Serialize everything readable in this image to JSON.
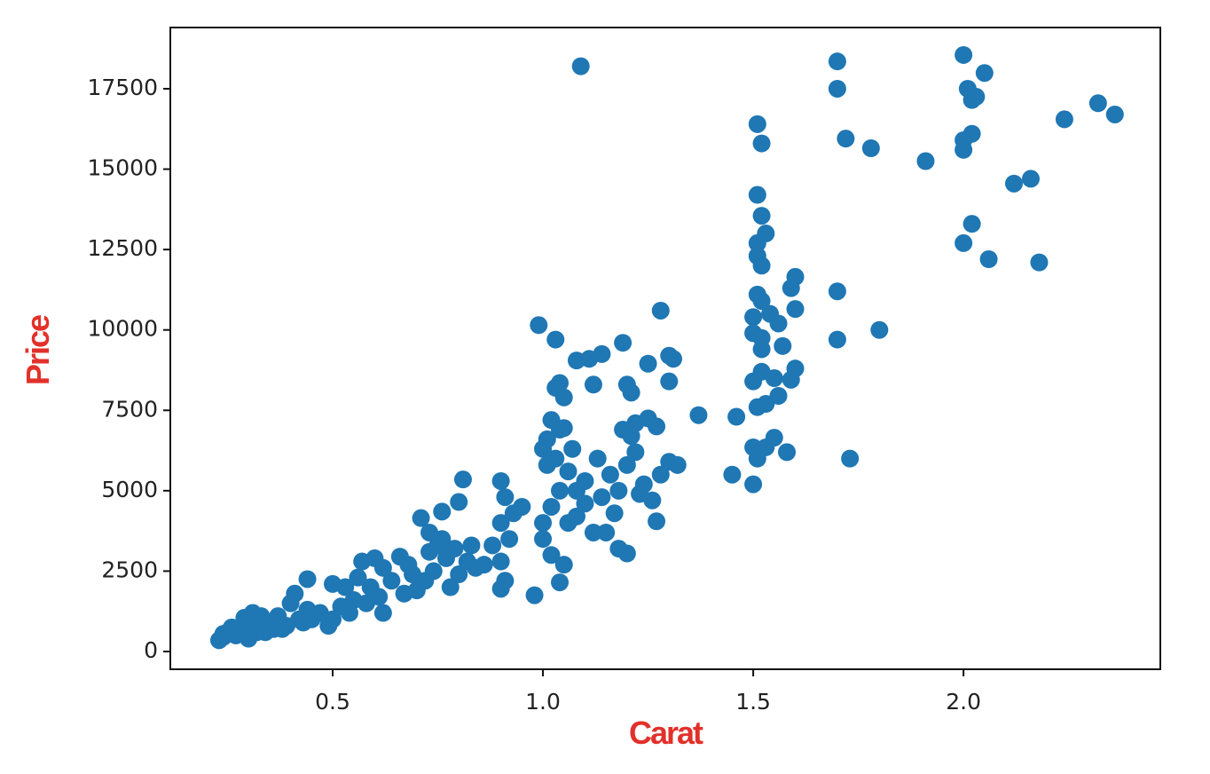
{
  "chart_data": {
    "type": "scatter",
    "xlabel": "Carat",
    "ylabel": "Price",
    "color": "#1f77b4",
    "label_color": "#e2302a",
    "xlim": [
      0.114,
      2.468
    ],
    "ylim": [
      -552,
      19404
    ],
    "xticks": [
      0.5,
      {
        "value": 1,
        "label": "1.0"
      },
      1.5,
      {
        "value": 2,
        "label": "2.0"
      }
    ],
    "yticks": [
      0,
      2500,
      5000,
      7500,
      10000,
      12500,
      15000,
      17500
    ],
    "x": [
      1.09,
      1.7,
      1.7,
      2.0,
      2.05,
      2.01,
      2.03,
      2.02,
      2.32,
      2.36,
      2.24,
      1.51,
      1.52,
      1.72,
      1.78,
      1.91,
      2.0,
      2.02,
      2.0,
      2.12,
      2.16,
      1.51,
      1.52,
      1.53,
      1.51,
      1.51,
      1.52,
      2.02,
      2.0,
      2.06,
      2.18,
      1.7,
      1.51,
      1.52,
      1.59,
      1.6,
      1.6,
      1.5,
      1.54,
      1.56,
      1.5,
      1.52,
      1.7,
      1.8,
      1.28,
      0.99,
      1.03,
      1.08,
      1.11,
      1.14,
      1.19,
      1.25,
      1.3,
      1.31,
      1.52,
      1.57,
      1.5,
      1.52,
      1.55,
      1.59,
      1.6,
      1.3,
      1.12,
      1.03,
      1.04,
      1.05,
      1.2,
      1.21,
      1.37,
      1.46,
      1.51,
      1.53,
      1.56,
      1.25,
      1.27,
      1.02,
      1.04,
      1.05,
      1.19,
      1.22,
      1.5,
      1.51,
      1.53,
      1.55,
      1.58,
      1.73,
      1.45,
      1.5,
      1.3,
      1.32,
      1.28,
      1.26,
      1.27,
      1.2,
      1.18,
      1.17,
      1.15,
      1.12,
      1.1,
      1.08,
      1.06,
      1.04,
      1.02,
      1.0,
      1.0,
      1.01,
      1.03,
      1.07,
      1.13,
      1.16,
      1.2,
      1.22,
      1.24,
      1.23,
      0.98,
      1.04,
      1.05,
      1.02,
      0.9,
      0.91,
      0.9,
      0.92,
      0.9,
      0.91,
      0.9,
      0.95,
      0.93,
      0.88,
      0.81,
      0.8,
      0.76,
      0.71,
      0.73,
      0.75,
      0.77,
      0.74,
      0.72,
      0.7,
      0.78,
      0.8,
      0.82,
      0.84,
      0.86,
      0.83,
      0.66,
      0.67,
      0.69,
      0.62,
      0.62,
      0.6,
      0.59,
      0.57,
      0.56,
      0.55,
      0.53,
      0.52,
      0.5,
      0.5,
      0.49,
      0.47,
      0.44,
      0.41,
      0.44,
      0.42,
      0.4,
      0.39,
      0.37,
      0.36,
      0.35,
      0.33,
      0.31,
      0.32,
      0.3,
      0.3,
      0.28,
      0.27,
      0.26,
      0.25,
      0.24,
      0.23,
      0.24,
      0.29,
      0.34,
      0.38,
      0.43,
      0.45,
      0.54,
      0.58,
      0.61,
      0.64,
      0.68,
      0.73,
      0.76,
      0.79,
      1.08,
      1.1,
      1.14,
      1.18,
      1.21,
      1.06,
      1.01,
      1.0
    ],
    "values": [
      18200,
      18350,
      17500,
      18550,
      17990,
      17500,
      17250,
      17150,
      17050,
      16700,
      16550,
      16400,
      15800,
      15950,
      15650,
      15250,
      15900,
      16100,
      15600,
      14550,
      14700,
      14200,
      13550,
      13000,
      12700,
      12300,
      12000,
      13300,
      12700,
      12200,
      12100,
      11200,
      11100,
      10900,
      11300,
      11650,
      10650,
      10400,
      10500,
      10200,
      9900,
      9750,
      9700,
      10000,
      10600,
      10150,
      9700,
      9050,
      9100,
      9250,
      9600,
      8950,
      9200,
      9100,
      9400,
      9500,
      8400,
      8700,
      8500,
      8450,
      8800,
      8400,
      8300,
      8200,
      8350,
      7900,
      8300,
      8050,
      7350,
      7300,
      7600,
      7700,
      7950,
      7250,
      7000,
      7200,
      6900,
      6950,
      6900,
      7100,
      6350,
      6000,
      6350,
      6650,
      6200,
      6000,
      5500,
      5200,
      5900,
      5800,
      5500,
      4700,
      4050,
      3050,
      3200,
      4300,
      3700,
      3700,
      4600,
      5000,
      5600,
      5000,
      4500,
      4000,
      3500,
      5800,
      6000,
      6300,
      6000,
      5500,
      5800,
      6200,
      5200,
      4900,
      1750,
      2150,
      2700,
      3000,
      5300,
      4800,
      4000,
      3500,
      2800,
      2200,
      1950,
      4500,
      4300,
      3300,
      5350,
      4650,
      4350,
      4150,
      3700,
      3300,
      2900,
      2500,
      2200,
      1900,
      2000,
      2400,
      2800,
      2600,
      2700,
      3300,
      2950,
      1800,
      2400,
      2600,
      1200,
      2900,
      2000,
      2800,
      2300,
      1600,
      2000,
      1400,
      2100,
      1000,
      800,
      1200,
      2250,
      1800,
      1300,
      1000,
      1500,
      800,
      1100,
      700,
      900,
      1100,
      1200,
      600,
      800,
      400,
      700,
      500,
      750,
      600,
      450,
      350,
      550,
      1050,
      600,
      700,
      900,
      1000,
      1200,
      1500,
      1700,
      2200,
      2700,
      3100,
      3500,
      3200,
      4200,
      5300,
      4800,
      5000,
      6700,
      4000,
      6600,
      6300
    ]
  }
}
